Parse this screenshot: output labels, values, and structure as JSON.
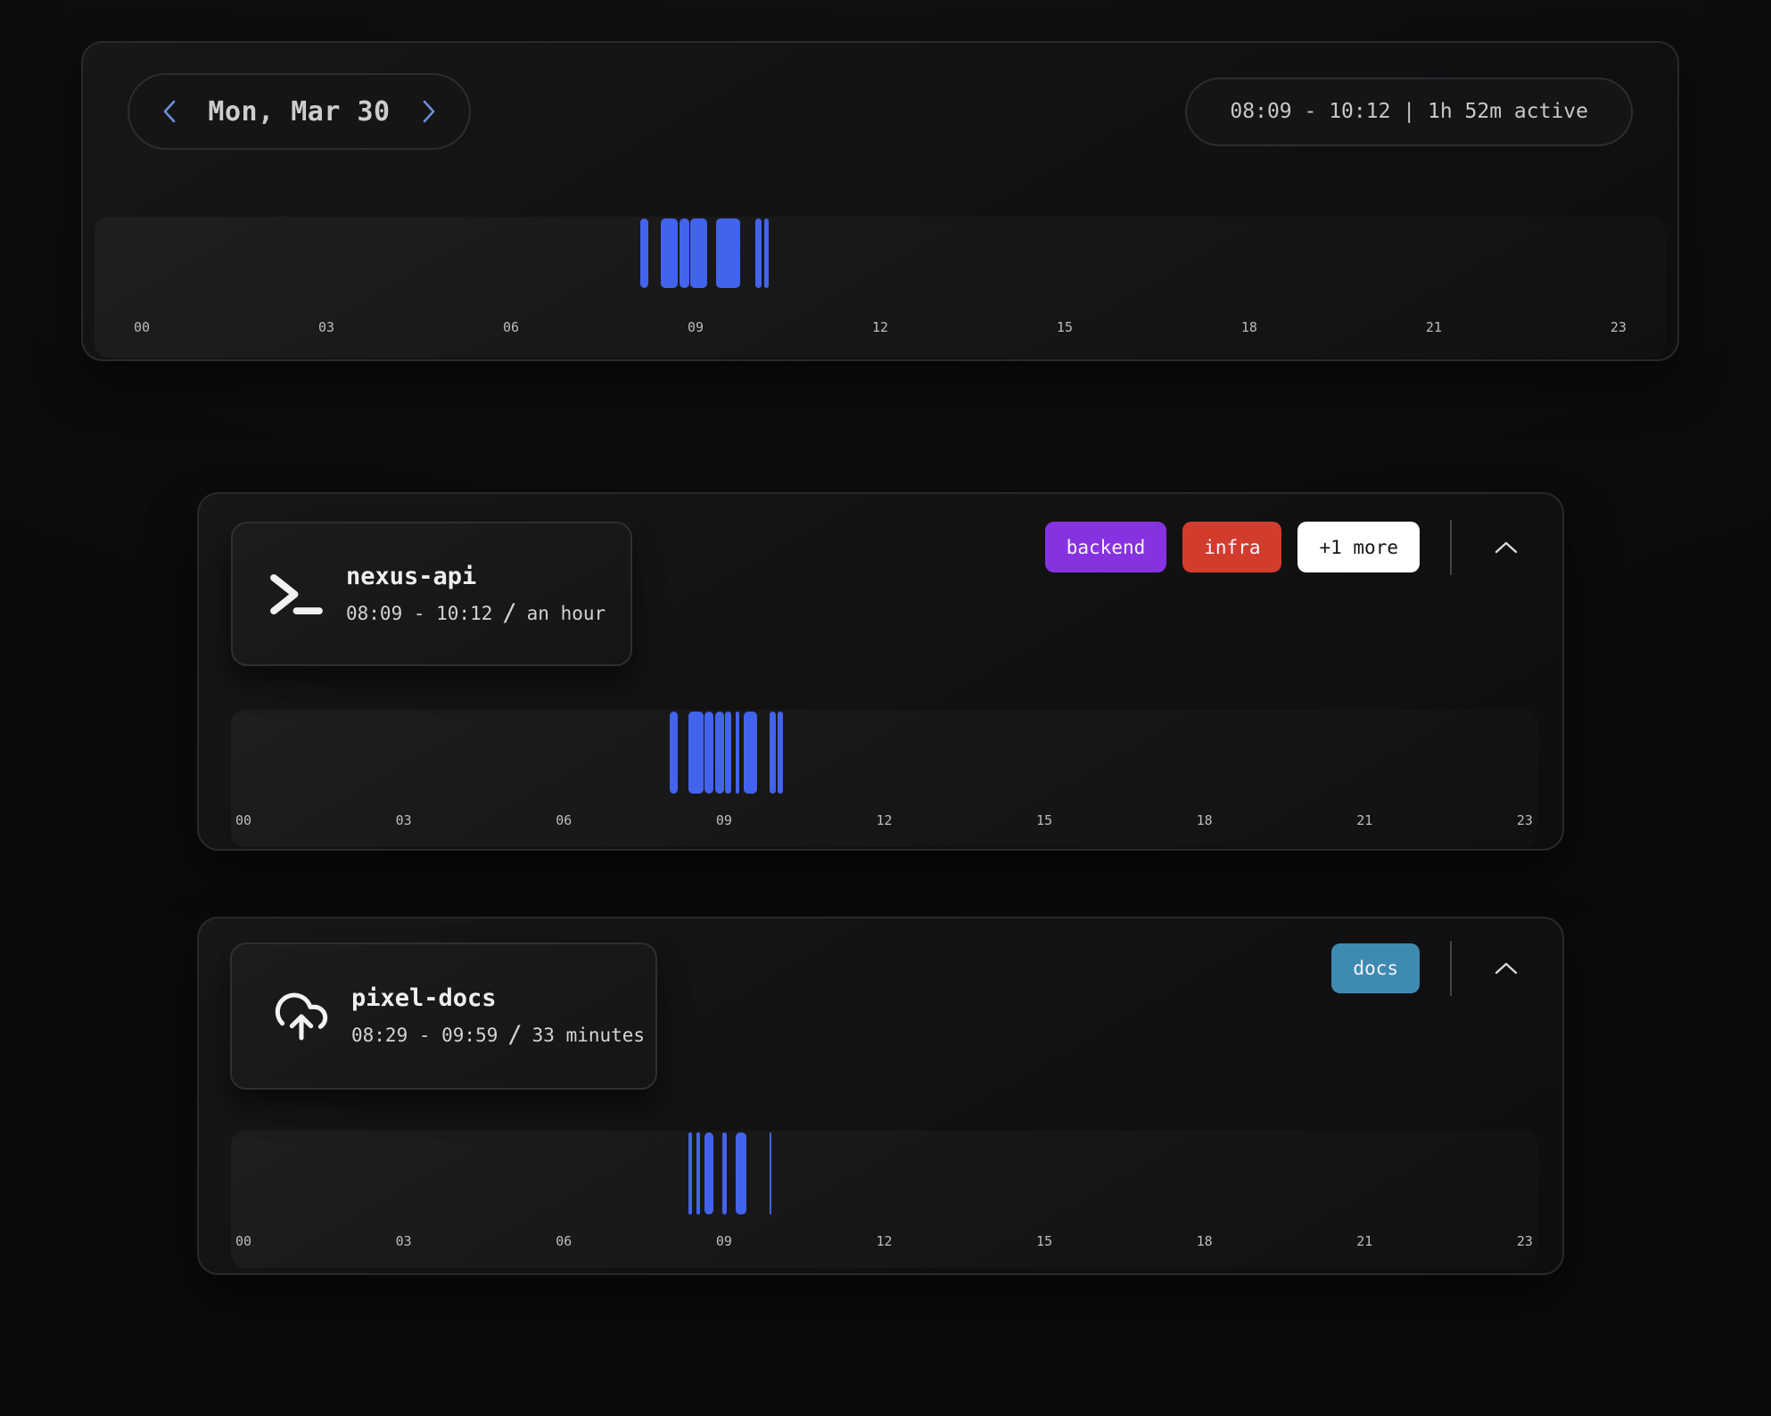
{
  "colors": {
    "bar_blue": "#4263eb",
    "nav_chevron": "#6d8ed8",
    "tag_backend": "#8732e0",
    "tag_infra": "#d23c2d",
    "tag_docs": "#3e8bb0",
    "more_button_bg": "#ffffff"
  },
  "hour_labels": [
    "00",
    "03",
    "06",
    "09",
    "12",
    "15",
    "18",
    "21",
    "23"
  ],
  "day_card": {
    "date_label": "Mon, Mar 30",
    "summary": "08:09 - 10:12 | 1h 52m active",
    "segments": [
      {
        "l": 33.91,
        "w": 0.54
      },
      {
        "l": 35.28,
        "w": 1.19
      },
      {
        "l": 36.53,
        "w": 0.66
      },
      {
        "l": 37.25,
        "w": 1.19
      },
      {
        "l": 38.98,
        "w": 1.67
      },
      {
        "l": 41.66,
        "w": 0.42
      },
      {
        "l": 42.25,
        "w": 0.3
      }
    ]
  },
  "projects": [
    {
      "name": "nexus-api",
      "icon": "terminal-icon",
      "time_range": "08:09 - 10:12",
      "separator": "/",
      "duration": "an hour",
      "tags": [
        {
          "label": "backend",
          "color": "#8732e0"
        },
        {
          "label": "infra",
          "color": "#d23c2d"
        }
      ],
      "more_button": {
        "label": "+1 more",
        "color": "#ffffff"
      },
      "segments": [
        {
          "l": 33.49,
          "w": 0.57
        },
        {
          "l": 34.93,
          "w": 1.14
        },
        {
          "l": 36.17,
          "w": 0.64
        },
        {
          "l": 36.96,
          "w": 0.71
        },
        {
          "l": 37.72,
          "w": 0.51
        },
        {
          "l": 38.59,
          "w": 0.27
        },
        {
          "l": 39.2,
          "w": 1.03
        },
        {
          "l": 41.19,
          "w": 0.46
        },
        {
          "l": 41.79,
          "w": 0.38
        }
      ]
    },
    {
      "name": "pixel-docs",
      "icon": "cloud-upload-icon",
      "time_range": "08:29 - 09:59",
      "separator": "/",
      "duration": "33 minutes",
      "tags": [
        {
          "label": "docs",
          "color": "#3e8bb0"
        }
      ],
      "segments": [
        {
          "l": 34.89,
          "w": 0.27
        },
        {
          "l": 35.5,
          "w": 0.34
        },
        {
          "l": 36.12,
          "w": 0.69
        },
        {
          "l": 37.56,
          "w": 0.34
        },
        {
          "l": 38.59,
          "w": 0.8
        },
        {
          "l": 41.15,
          "w": 0.14
        }
      ]
    }
  ]
}
